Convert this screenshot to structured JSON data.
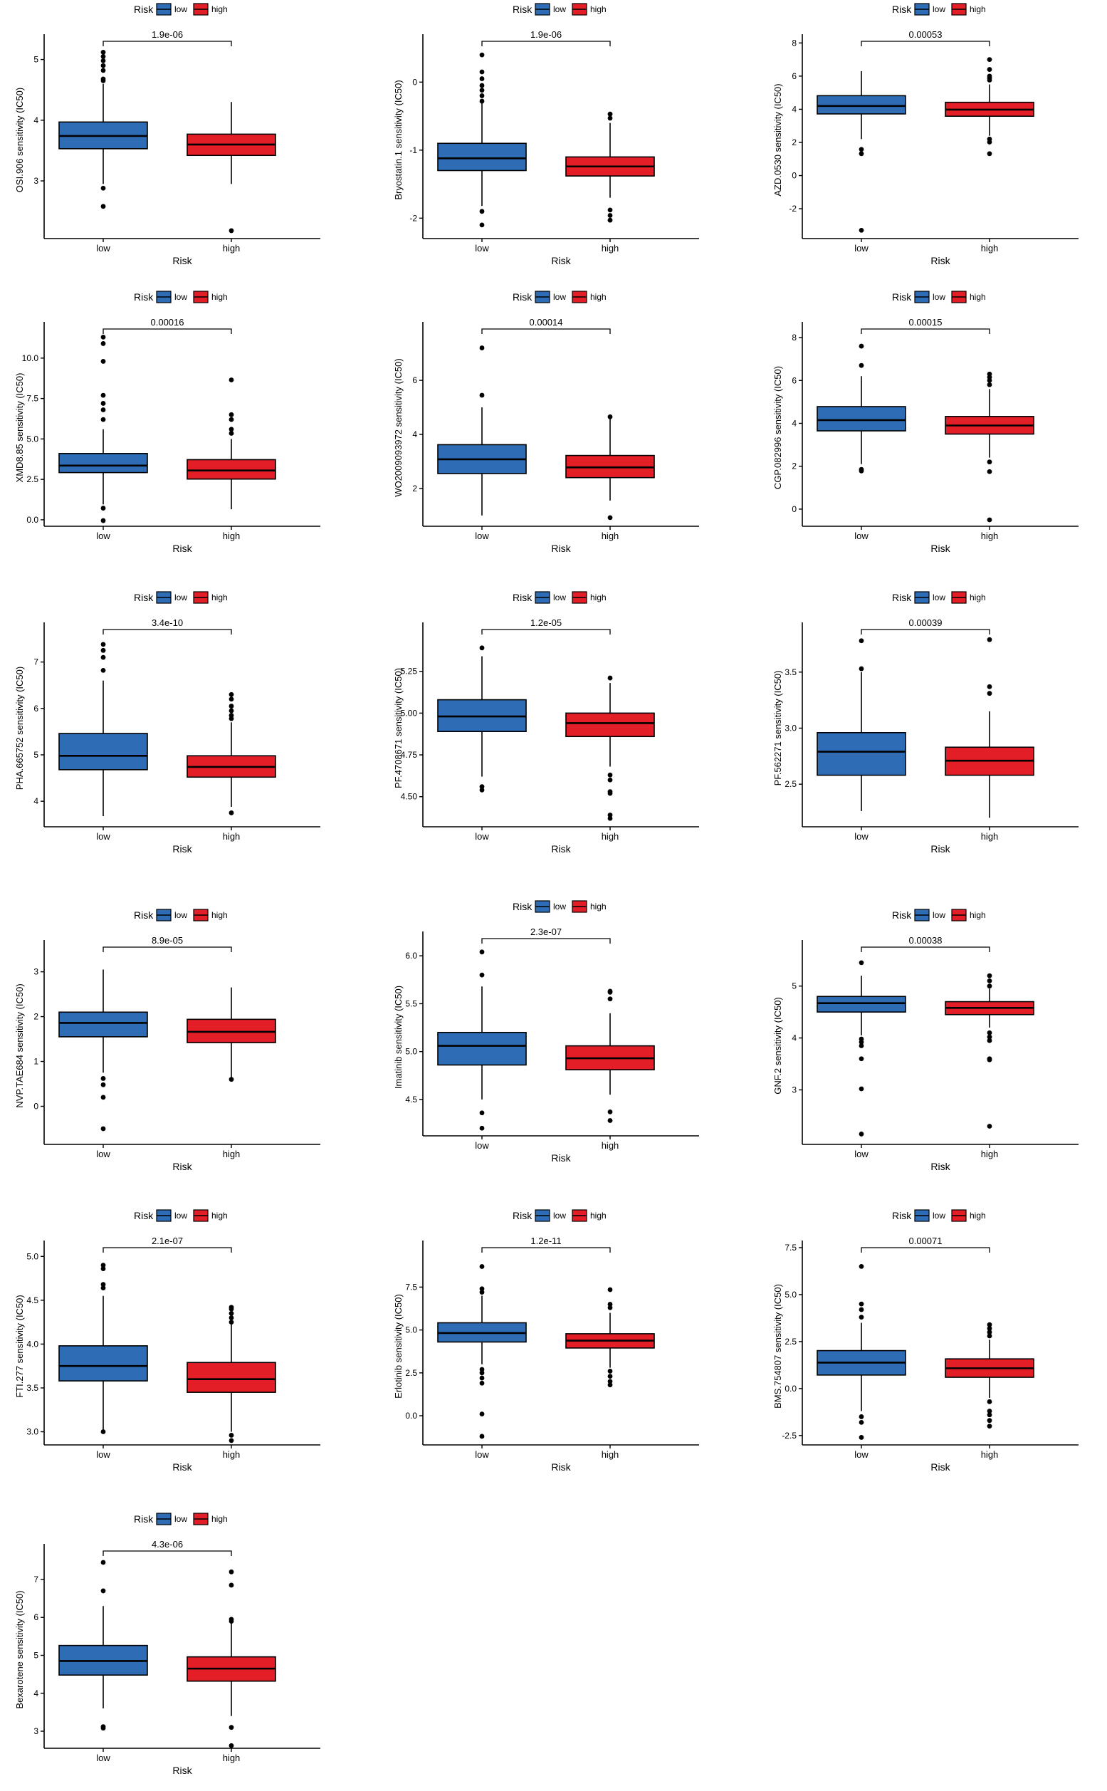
{
  "colors": {
    "low": "#2e6db6",
    "high": "#e31e26",
    "axis": "#000000"
  },
  "chart_data": [
    {
      "type": "box",
      "ylabel": "OSI.906 sensitivity (IC50)",
      "xlabel": "Risk",
      "legend_title": "Risk",
      "legend_labels": [
        "low",
        "high"
      ],
      "legend_position": "top",
      "categories": [
        "low",
        "high"
      ],
      "pvalue": "1.9e-06",
      "ylim": [
        2.05,
        5.3
      ],
      "yticks": [
        3,
        4,
        5
      ],
      "ytick_labels": [
        "3",
        "4",
        "5"
      ],
      "boxes": [
        {
          "group": "low",
          "q1": 3.53,
          "median": 3.74,
          "q3": 3.97,
          "whisker_low": 2.95,
          "whisker_high": 4.6,
          "outliers": [
            2.88,
            2.58,
            4.65,
            4.68,
            4.82,
            4.9,
            4.98,
            5.05,
            5.12
          ]
        },
        {
          "group": "high",
          "q1": 3.42,
          "median": 3.6,
          "q3": 3.77,
          "whisker_low": 2.95,
          "whisker_high": 4.3,
          "outliers": [
            2.18
          ]
        }
      ]
    },
    {
      "type": "box",
      "ylabel": "Bryostatin.1 sensitivity (IC50)",
      "xlabel": "Risk",
      "legend_title": "Risk",
      "legend_labels": [
        "low",
        "high"
      ],
      "legend_position": "top",
      "categories": [
        "low",
        "high"
      ],
      "pvalue": "1.9e-06",
      "ylim": [
        -2.3,
        0.6
      ],
      "yticks": [
        -2,
        -1,
        0
      ],
      "ytick_labels": [
        "-2",
        "-1",
        "0"
      ],
      "boxes": [
        {
          "group": "low",
          "q1": -1.3,
          "median": -1.12,
          "q3": -0.9,
          "whisker_low": -1.82,
          "whisker_high": -0.3,
          "outliers": [
            0.4,
            0.15,
            0.05,
            -0.05,
            -0.12,
            -0.2,
            -0.28,
            -1.9,
            -2.1
          ]
        },
        {
          "group": "high",
          "q1": -1.38,
          "median": -1.24,
          "q3": -1.1,
          "whisker_low": -1.7,
          "whisker_high": -0.6,
          "outliers": [
            -0.47,
            -0.53,
            -1.88,
            -1.96,
            -2.03
          ]
        }
      ]
    },
    {
      "type": "box",
      "ylabel": "AZD.0530 sensitivity (IC50)",
      "xlabel": "Risk",
      "legend_title": "Risk",
      "legend_labels": [
        "low",
        "high"
      ],
      "legend_position": "top",
      "categories": [
        "low",
        "high"
      ],
      "pvalue": "0.00053",
      "ylim": [
        -3.8,
        8.1
      ],
      "yticks": [
        -2,
        0,
        2,
        4,
        6,
        8
      ],
      "ytick_labels": [
        "-2",
        "0",
        "2",
        "4",
        "6",
        "8"
      ],
      "boxes": [
        {
          "group": "low",
          "q1": 3.72,
          "median": 4.2,
          "q3": 4.82,
          "whisker_low": 2.2,
          "whisker_high": 6.3,
          "outliers": [
            1.58,
            1.32,
            -3.3
          ]
        },
        {
          "group": "high",
          "q1": 3.58,
          "median": 3.98,
          "q3": 4.42,
          "whisker_low": 2.4,
          "whisker_high": 5.5,
          "outliers": [
            7.0,
            6.4,
            6.0,
            5.88,
            5.76,
            2.2,
            2.02,
            1.32
          ]
        }
      ]
    },
    {
      "type": "box",
      "ylabel": "XMD8.85 sensitivity (IC50)",
      "xlabel": "Risk",
      "legend_title": "Risk",
      "legend_labels": [
        "low",
        "high"
      ],
      "legend_position": "top",
      "categories": [
        "low",
        "high"
      ],
      "pvalue": "0.00016",
      "ylim": [
        -0.4,
        11.8
      ],
      "yticks": [
        0,
        2.5,
        5,
        7.5,
        10
      ],
      "ytick_labels": [
        "0.0",
        "2.5",
        "5.0",
        "7.5",
        "10.0"
      ],
      "boxes": [
        {
          "group": "low",
          "q1": 2.92,
          "median": 3.35,
          "q3": 4.1,
          "whisker_low": 0.95,
          "whisker_high": 5.6,
          "outliers": [
            11.3,
            10.9,
            9.8,
            7.7,
            7.2,
            6.8,
            6.2,
            0.72,
            -0.05
          ]
        },
        {
          "group": "high",
          "q1": 2.52,
          "median": 3.05,
          "q3": 3.72,
          "whisker_low": 0.65,
          "whisker_high": 5.0,
          "outliers": [
            8.65,
            6.5,
            6.2,
            5.6,
            5.35
          ]
        }
      ]
    },
    {
      "type": "box",
      "ylabel": "WO2009093972 sensitivity (IC50)",
      "xlabel": "Risk",
      "legend_title": "Risk",
      "legend_labels": [
        "low",
        "high"
      ],
      "legend_position": "top",
      "categories": [
        "low",
        "high"
      ],
      "pvalue": "0.00014",
      "ylim": [
        0.6,
        7.9
      ],
      "yticks": [
        2,
        4,
        6
      ],
      "ytick_labels": [
        "2",
        "4",
        "6"
      ],
      "boxes": [
        {
          "group": "low",
          "q1": 2.55,
          "median": 3.08,
          "q3": 3.62,
          "whisker_low": 1.0,
          "whisker_high": 5.0,
          "outliers": [
            7.2,
            5.45
          ]
        },
        {
          "group": "high",
          "q1": 2.4,
          "median": 2.78,
          "q3": 3.22,
          "whisker_low": 1.55,
          "whisker_high": 4.6,
          "outliers": [
            4.65,
            0.92
          ]
        }
      ]
    },
    {
      "type": "box",
      "ylabel": "CGP.082996 sensitivity (IC50)",
      "xlabel": "Risk",
      "legend_title": "Risk",
      "legend_labels": [
        "low",
        "high"
      ],
      "legend_position": "top",
      "categories": [
        "low",
        "high"
      ],
      "pvalue": "0.00015",
      "ylim": [
        -0.8,
        8.4
      ],
      "yticks": [
        0,
        2,
        4,
        6,
        8
      ],
      "ytick_labels": [
        "0",
        "2",
        "4",
        "6",
        "8"
      ],
      "boxes": [
        {
          "group": "low",
          "q1": 3.65,
          "median": 4.15,
          "q3": 4.78,
          "whisker_low": 2.1,
          "whisker_high": 6.2,
          "outliers": [
            7.6,
            6.7,
            1.85,
            1.78
          ]
        },
        {
          "group": "high",
          "q1": 3.5,
          "median": 3.9,
          "q3": 4.32,
          "whisker_low": 2.4,
          "whisker_high": 5.6,
          "outliers": [
            6.3,
            6.15,
            6.0,
            5.8,
            2.2,
            1.75,
            -0.5
          ]
        }
      ]
    },
    {
      "type": "box",
      "ylabel": "PHA.665752 sensitivity (IC50)",
      "xlabel": "Risk",
      "legend_title": "Risk",
      "legend_labels": [
        "low",
        "high"
      ],
      "legend_position": "top",
      "categories": [
        "low",
        "high"
      ],
      "pvalue": "3.4e-10",
      "ylim": [
        3.45,
        7.7
      ],
      "yticks": [
        4,
        5,
        6,
        7
      ],
      "ytick_labels": [
        "4",
        "5",
        "6",
        "7"
      ],
      "boxes": [
        {
          "group": "low",
          "q1": 4.68,
          "median": 4.98,
          "q3": 5.46,
          "whisker_low": 3.68,
          "whisker_high": 6.6,
          "outliers": [
            7.38,
            7.25,
            7.1,
            6.82
          ]
        },
        {
          "group": "high",
          "q1": 4.52,
          "median": 4.74,
          "q3": 4.98,
          "whisker_low": 3.88,
          "whisker_high": 5.7,
          "outliers": [
            6.3,
            6.2,
            6.05,
            5.95,
            5.85,
            5.78,
            3.75
          ]
        }
      ]
    },
    {
      "type": "box",
      "ylabel": "PF.4708671 sensitivity (IC50)",
      "xlabel": "Risk",
      "legend_title": "Risk",
      "legend_labels": [
        "low",
        "high"
      ],
      "legend_position": "top",
      "categories": [
        "low",
        "high"
      ],
      "pvalue": "1.2e-05",
      "ylim": [
        4.32,
        5.5
      ],
      "yticks": [
        4.5,
        4.75,
        5.0,
        5.25
      ],
      "ytick_labels": [
        "4.50",
        "4.75",
        "5.00",
        "5.25"
      ],
      "boxes": [
        {
          "group": "low",
          "q1": 4.89,
          "median": 4.98,
          "q3": 5.08,
          "whisker_low": 4.62,
          "whisker_high": 5.34,
          "outliers": [
            5.39,
            4.56,
            4.54
          ]
        },
        {
          "group": "high",
          "q1": 4.86,
          "median": 4.94,
          "q3": 5.0,
          "whisker_low": 4.68,
          "whisker_high": 5.18,
          "outliers": [
            5.21,
            4.63,
            4.6,
            4.53,
            4.52,
            4.39,
            4.37
          ]
        }
      ]
    },
    {
      "type": "box",
      "ylabel": "PF.562271 sensitivity (IC50)",
      "xlabel": "Risk",
      "legend_title": "Risk",
      "legend_labels": [
        "low",
        "high"
      ],
      "legend_position": "top",
      "categories": [
        "low",
        "high"
      ],
      "pvalue": "0.00039",
      "ylim": [
        2.12,
        3.88
      ],
      "yticks": [
        2.5,
        3.0,
        3.5
      ],
      "ytick_labels": [
        "2.5",
        "3.0",
        "3.5"
      ],
      "boxes": [
        {
          "group": "low",
          "q1": 2.58,
          "median": 2.79,
          "q3": 2.96,
          "whisker_low": 2.26,
          "whisker_high": 3.5,
          "outliers": [
            3.78,
            3.53
          ]
        },
        {
          "group": "high",
          "q1": 2.58,
          "median": 2.71,
          "q3": 2.83,
          "whisker_low": 2.2,
          "whisker_high": 3.15,
          "outliers": [
            3.79,
            3.37,
            3.31
          ]
        }
      ]
    },
    {
      "type": "box",
      "ylabel": "NVP.TAE684 sensitivity (IC50)",
      "xlabel": "Risk",
      "legend_title": "Risk",
      "legend_labels": [
        "low",
        "high"
      ],
      "legend_position": "top",
      "categories": [
        "low",
        "high"
      ],
      "pvalue": "8.9e-05",
      "ylim": [
        -0.85,
        3.55
      ],
      "yticks": [
        0,
        1,
        2,
        3
      ],
      "ytick_labels": [
        "0",
        "1",
        "2",
        "3"
      ],
      "boxes": [
        {
          "group": "low",
          "q1": 1.55,
          "median": 1.86,
          "q3": 2.1,
          "whisker_low": 0.75,
          "whisker_high": 3.05,
          "outliers": [
            0.62,
            0.48,
            0.2,
            -0.5
          ]
        },
        {
          "group": "high",
          "q1": 1.42,
          "median": 1.66,
          "q3": 1.94,
          "whisker_low": 0.65,
          "whisker_high": 2.65,
          "outliers": [
            0.6
          ]
        }
      ]
    },
    {
      "type": "box",
      "ylabel": "Imatinib sensitivity (IC50)",
      "xlabel": "Risk",
      "legend_title": "Risk",
      "legend_labels": [
        "low",
        "high"
      ],
      "legend_position": "top",
      "categories": [
        "low",
        "high"
      ],
      "pvalue": "2.3e-07",
      "ylim": [
        4.12,
        6.18
      ],
      "yticks": [
        4.5,
        5.0,
        5.5,
        6.0
      ],
      "ytick_labels": [
        "4.5",
        "5.0",
        "5.5",
        "6.0"
      ],
      "boxes": [
        {
          "group": "low",
          "q1": 4.86,
          "median": 5.06,
          "q3": 5.2,
          "whisker_low": 4.5,
          "whisker_high": 5.68,
          "outliers": [
            6.04,
            5.8,
            4.36,
            4.2
          ]
        },
        {
          "group": "high",
          "q1": 4.81,
          "median": 4.93,
          "q3": 5.06,
          "whisker_low": 4.55,
          "whisker_high": 5.4,
          "outliers": [
            5.63,
            5.62,
            5.55,
            4.37,
            4.28
          ]
        }
      ]
    },
    {
      "type": "box",
      "ylabel": "GNF.2 sensitivity (IC50)",
      "xlabel": "Risk",
      "legend_title": "Risk",
      "legend_labels": [
        "low",
        "high"
      ],
      "legend_position": "top",
      "categories": [
        "low",
        "high"
      ],
      "pvalue": "0.00038",
      "ylim": [
        1.95,
        5.75
      ],
      "yticks": [
        3,
        4,
        5
      ],
      "ytick_labels": [
        "3",
        "4",
        "5"
      ],
      "boxes": [
        {
          "group": "low",
          "q1": 4.5,
          "median": 4.67,
          "q3": 4.8,
          "whisker_low": 4.05,
          "whisker_high": 5.2,
          "outliers": [
            5.45,
            3.98,
            3.92,
            3.85,
            3.6,
            3.02,
            2.15
          ]
        },
        {
          "group": "high",
          "q1": 4.45,
          "median": 4.58,
          "q3": 4.7,
          "whisker_low": 4.2,
          "whisker_high": 4.95,
          "outliers": [
            5.2,
            5.1,
            5.0,
            4.1,
            4.02,
            3.95,
            3.6,
            3.58,
            2.3
          ]
        }
      ]
    },
    {
      "type": "box",
      "ylabel": "FTI.277 sensitivity (IC50)",
      "xlabel": "Risk",
      "legend_title": "Risk",
      "legend_labels": [
        "low",
        "high"
      ],
      "legend_position": "top",
      "categories": [
        "low",
        "high"
      ],
      "pvalue": "2.1e-07",
      "ylim": [
        2.85,
        5.1
      ],
      "yticks": [
        3.0,
        3.5,
        4.0,
        4.5,
        5.0
      ],
      "ytick_labels": [
        "3.0",
        "3.5",
        "4.0",
        "4.5",
        "5.0"
      ],
      "boxes": [
        {
          "group": "low",
          "q1": 3.58,
          "median": 3.75,
          "q3": 3.98,
          "whisker_low": 3.0,
          "whisker_high": 4.55,
          "outliers": [
            4.9,
            4.86,
            4.68,
            4.64,
            3.0
          ]
        },
        {
          "group": "high",
          "q1": 3.45,
          "median": 3.6,
          "q3": 3.79,
          "whisker_low": 3.0,
          "whisker_high": 4.3,
          "outliers": [
            4.42,
            4.4,
            4.35,
            4.3,
            4.25,
            2.96,
            2.9
          ]
        }
      ]
    },
    {
      "type": "box",
      "ylabel": "Erlotinib sensitivity (IC50)",
      "xlabel": "Risk",
      "legend_title": "Risk",
      "legend_labels": [
        "low",
        "high"
      ],
      "legend_position": "top",
      "categories": [
        "low",
        "high"
      ],
      "pvalue": "1.2e-11",
      "ylim": [
        -1.7,
        9.8
      ],
      "yticks": [
        0,
        2.5,
        5,
        7.5
      ],
      "ytick_labels": [
        "0.0",
        "2.5",
        "5.0",
        "7.5"
      ],
      "boxes": [
        {
          "group": "low",
          "q1": 4.3,
          "median": 4.82,
          "q3": 5.42,
          "whisker_low": 3.0,
          "whisker_high": 7.0,
          "outliers": [
            8.7,
            7.4,
            7.2,
            2.7,
            2.5,
            2.2,
            1.9,
            0.1,
            -1.2
          ]
        },
        {
          "group": "high",
          "q1": 3.95,
          "median": 4.38,
          "q3": 4.78,
          "whisker_low": 2.8,
          "whisker_high": 6.0,
          "outliers": [
            7.35,
            6.5,
            6.3,
            2.6,
            2.3,
            2.0,
            1.8
          ]
        }
      ]
    },
    {
      "type": "box",
      "ylabel": "BMS.754807 sensitivity (IC50)",
      "xlabel": "Risk",
      "legend_title": "Risk",
      "legend_labels": [
        "low",
        "high"
      ],
      "legend_position": "top",
      "categories": [
        "low",
        "high"
      ],
      "pvalue": "0.00071",
      "ylim": [
        -3.0,
        7.5
      ],
      "yticks": [
        -2.5,
        0,
        2.5,
        5.0,
        7.5
      ],
      "ytick_labels": [
        "-2.5",
        "0.0",
        "2.5",
        "5.0",
        "7.5"
      ],
      "boxes": [
        {
          "group": "low",
          "q1": 0.72,
          "median": 1.38,
          "q3": 2.02,
          "whisker_low": -1.2,
          "whisker_high": 3.5,
          "outliers": [
            6.5,
            4.5,
            4.2,
            3.8,
            -1.5,
            -1.8,
            -2.6
          ]
        },
        {
          "group": "high",
          "q1": 0.6,
          "median": 1.08,
          "q3": 1.58,
          "whisker_low": -0.5,
          "whisker_high": 2.6,
          "outliers": [
            3.4,
            3.2,
            3.0,
            2.8,
            -0.7,
            -1.2,
            -1.4,
            -1.7,
            -2.0
          ]
        }
      ]
    },
    {
      "type": "box",
      "ylabel": "Bexarotene sensitivity (IC50)",
      "xlabel": "Risk",
      "legend_title": "Risk",
      "legend_labels": [
        "low",
        "high"
      ],
      "legend_position": "top",
      "categories": [
        "low",
        "high"
      ],
      "pvalue": "4.3e-06",
      "ylim": [
        2.55,
        7.75
      ],
      "yticks": [
        3,
        4,
        5,
        6,
        7
      ],
      "ytick_labels": [
        "3",
        "4",
        "5",
        "6",
        "7"
      ],
      "boxes": [
        {
          "group": "low",
          "q1": 4.48,
          "median": 4.85,
          "q3": 5.26,
          "whisker_low": 3.6,
          "whisker_high": 6.3,
          "outliers": [
            7.45,
            6.7,
            3.12,
            3.08
          ]
        },
        {
          "group": "high",
          "q1": 4.32,
          "median": 4.65,
          "q3": 4.96,
          "whisker_low": 3.4,
          "whisker_high": 6.0,
          "outliers": [
            7.2,
            6.85,
            5.95,
            5.9,
            3.1,
            2.62
          ]
        }
      ]
    }
  ]
}
